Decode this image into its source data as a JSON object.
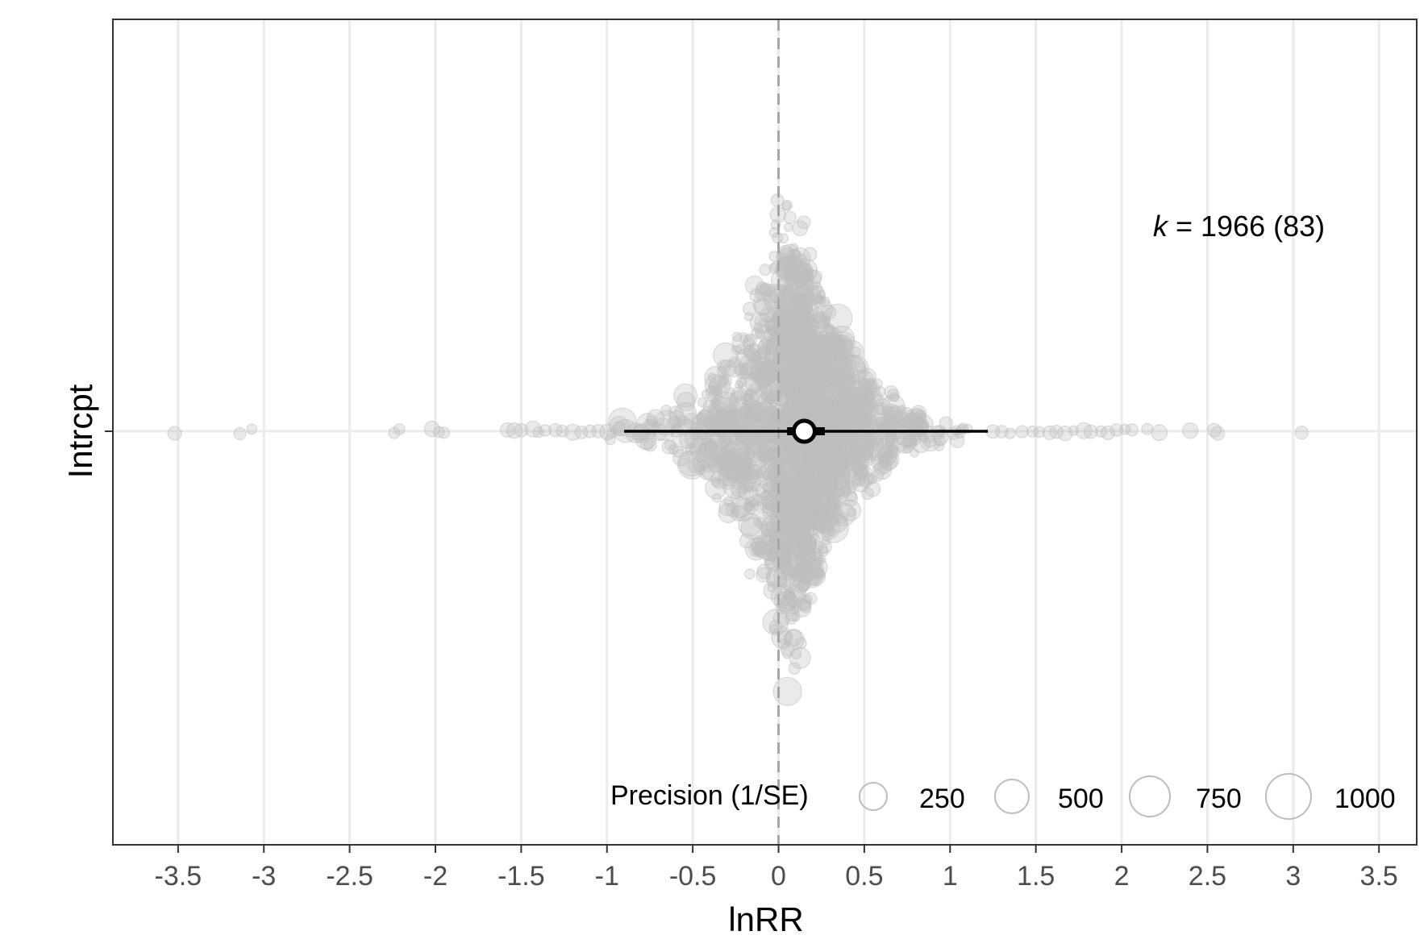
{
  "chart_data": {
    "type": "scatter",
    "subtype": "orchard plot (bee-swarm with pooled estimate)",
    "title": "",
    "xlabel": "lnRR",
    "ylabel": "",
    "y_category": "Intrcpt",
    "xlim": [
      -3.88,
      3.72
    ],
    "x_ticks": [
      -3.5,
      -3,
      -2.5,
      -2,
      -1.5,
      -1,
      -0.5,
      0,
      0.5,
      1,
      1.5,
      2,
      2.5,
      3,
      3.5
    ],
    "x_tick_labels": [
      "-3.5",
      "-3",
      "-2.5",
      "-2",
      "-1.5",
      "-1",
      "-0.5",
      "0",
      "0.5",
      "1",
      "1.5",
      "2",
      "2.5",
      "3",
      "3.5"
    ],
    "grid": "vertical major gridlines plus horizontal line at category",
    "reference_line": {
      "x": 0,
      "style": "dashed"
    },
    "pooled_estimate": {
      "estimate": 0.15,
      "ci": [
        0.05,
        0.27
      ],
      "pi": [
        -0.9,
        1.22
      ]
    },
    "annotation": {
      "k_symbol": "k",
      "k_text": " = 1966 (83)"
    },
    "effect_count": 1966,
    "study_count": 83,
    "outlying_points_x": [
      -3.52,
      -3.14,
      -3.07,
      -2.24,
      -2.21,
      -2.02,
      -1.98,
      -1.95,
      -1.58,
      -1.54,
      -1.5,
      -1.43,
      -1.4,
      -1.36,
      -1.3,
      -1.26,
      -1.2,
      -1.15,
      -1.1,
      -1.05,
      1.25,
      1.3,
      1.35,
      1.42,
      1.48,
      1.52,
      1.58,
      1.62,
      1.67,
      1.72,
      1.78,
      1.82,
      1.88,
      1.92,
      1.97,
      2.02,
      2.06,
      2.15,
      2.22,
      2.4,
      2.54,
      2.56,
      3.05
    ],
    "legend": {
      "title": "Precision (1/SE)",
      "position": "bottom-right",
      "entries": [
        "250",
        "500",
        "750",
        "1000"
      ]
    },
    "colors": {
      "points": "#bdbdbd",
      "estimate": "#000000",
      "grid": "#ebebeb",
      "zero_line": "#a6a6a6"
    }
  }
}
